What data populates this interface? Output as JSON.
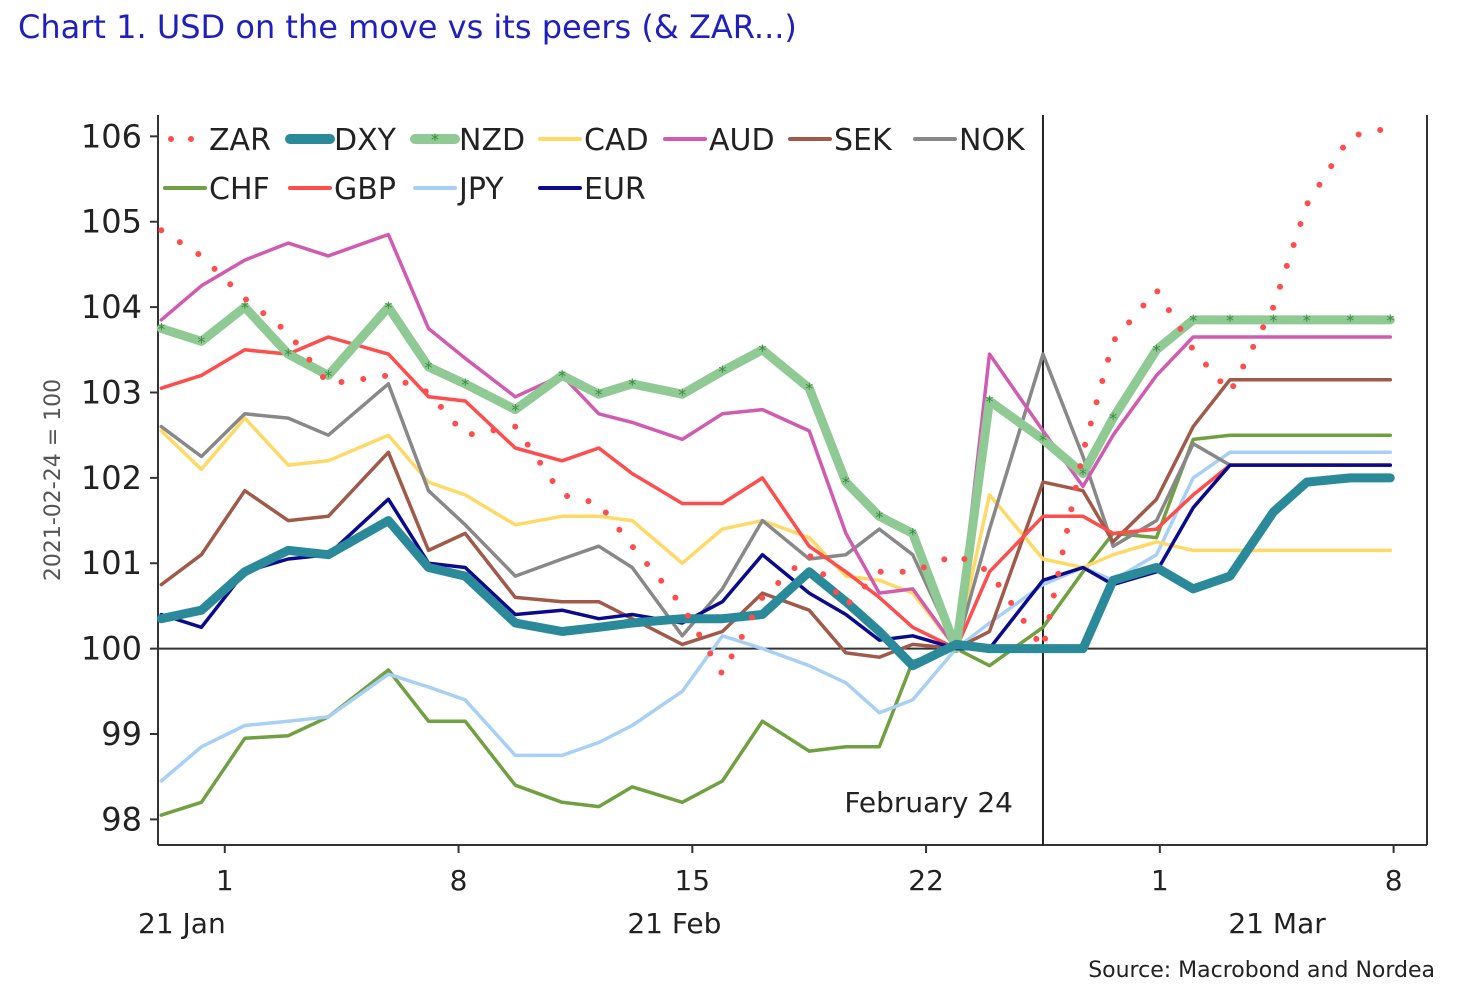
{
  "chart_data": {
    "type": "line",
    "title": "Chart 1. USD on the move vs its peers (& ZAR...)",
    "ylabel": "2021-02-24 = 100",
    "ylim": [
      97.7,
      106.25
    ],
    "yticks": [
      98,
      99,
      100,
      101,
      102,
      103,
      104,
      105,
      106
    ],
    "x_start_day": -2,
    "x_end_day": 36,
    "xticks": [
      {
        "day": 0,
        "label": "1"
      },
      {
        "day": 7,
        "label": "8"
      },
      {
        "day": 14,
        "label": "15"
      },
      {
        "day": 21,
        "label": "22"
      },
      {
        "day": 28,
        "label": "1"
      },
      {
        "day": 35,
        "label": "8"
      }
    ],
    "month_labels": [
      {
        "day": 0,
        "label": "21 Jan"
      },
      {
        "day": 14,
        "label": "21 Feb"
      },
      {
        "day": 32,
        "label": "21 Mar"
      }
    ],
    "reference_line": {
      "day": 24.5,
      "label": "February 24"
    },
    "baseline": 100,
    "x": [
      -1.9,
      -0.7,
      0.6,
      1.9,
      3.1,
      4.9,
      6.1,
      7.2,
      8.7,
      10.1,
      11.2,
      12.2,
      13.7,
      14.9,
      16.1,
      17.5,
      18.6,
      19.6,
      20.6,
      21.9,
      22.9,
      24.5,
      25.7,
      26.6,
      27.9,
      29.0,
      30.1,
      31.4,
      32.4,
      33.7,
      34.9
    ],
    "series": [
      {
        "name": "ZAR",
        "color": "#ff4c4c",
        "style": "dotted",
        "values": [
          104.9,
          104.6,
          104.1,
          103.7,
          103.1,
          103.2,
          103.0,
          102.5,
          102.6,
          101.8,
          101.7,
          101.2,
          100.5,
          99.7,
          100.6,
          101.1,
          100.5,
          100.9,
          100.9,
          101.1,
          100.9,
          100.0,
          102.3,
          103.6,
          104.2,
          103.5,
          103.0,
          104.0,
          105.2,
          106.0,
          106.1
        ]
      },
      {
        "name": "DXY",
        "color": "#2a8a9a",
        "style": "thick",
        "values": [
          100.35,
          100.45,
          100.9,
          101.15,
          101.1,
          101.5,
          100.95,
          100.85,
          100.3,
          100.2,
          100.25,
          100.3,
          100.35,
          100.35,
          100.4,
          100.9,
          100.55,
          100.2,
          99.8,
          100.05,
          100.0,
          100.0,
          100.0,
          100.8,
          100.95,
          100.7,
          100.85,
          101.6,
          101.95,
          102.0,
          102.0
        ]
      },
      {
        "name": "NZD",
        "color": "#8fca94",
        "style": "marker",
        "values": [
          103.75,
          103.6,
          104.0,
          103.45,
          103.2,
          104.0,
          103.3,
          103.1,
          102.8,
          103.2,
          102.98,
          103.1,
          102.98,
          103.25,
          103.5,
          103.05,
          101.95,
          101.55,
          101.35,
          100.0,
          102.9,
          102.45,
          102.05,
          102.7,
          103.5,
          103.85,
          103.85,
          103.85,
          103.85,
          103.85,
          103.85
        ]
      },
      {
        "name": "CAD",
        "color": "#ffd966",
        "style": "line",
        "values": [
          102.55,
          102.1,
          102.7,
          102.15,
          102.2,
          102.5,
          101.95,
          101.8,
          101.45,
          101.55,
          101.55,
          101.5,
          101.0,
          101.4,
          101.5,
          101.3,
          100.85,
          100.8,
          100.65,
          100.0,
          101.8,
          101.05,
          100.95,
          101.1,
          101.25,
          101.15,
          101.15,
          101.15,
          101.15,
          101.15,
          101.15
        ]
      },
      {
        "name": "AUD",
        "color": "#d05bb0",
        "style": "line",
        "values": [
          103.85,
          104.25,
          104.55,
          104.75,
          104.6,
          104.85,
          103.75,
          103.4,
          102.95,
          103.2,
          102.75,
          102.65,
          102.45,
          102.75,
          102.8,
          102.55,
          101.35,
          100.65,
          100.7,
          100.0,
          103.45,
          102.55,
          101.9,
          102.5,
          103.2,
          103.65,
          103.65,
          103.65,
          103.65,
          103.65,
          103.65
        ]
      },
      {
        "name": "SEK",
        "color": "#a05a4a",
        "style": "line",
        "values": [
          100.75,
          101.1,
          101.85,
          101.5,
          101.55,
          102.3,
          101.15,
          101.35,
          100.6,
          100.55,
          100.55,
          100.35,
          100.05,
          100.2,
          100.65,
          100.45,
          99.95,
          99.9,
          100.05,
          100.0,
          100.2,
          101.95,
          101.85,
          101.25,
          101.75,
          102.6,
          103.15,
          103.15,
          103.15,
          103.15,
          103.15
        ]
      },
      {
        "name": "NOK",
        "color": "#888888",
        "style": "line",
        "values": [
          102.6,
          102.25,
          102.75,
          102.7,
          102.5,
          103.1,
          101.85,
          101.45,
          100.85,
          101.05,
          101.2,
          100.95,
          100.15,
          100.7,
          101.5,
          101.05,
          101.1,
          101.4,
          101.1,
          100.0,
          101.4,
          103.45,
          102.25,
          101.2,
          101.5,
          102.4,
          102.15,
          102.15,
          102.15,
          102.15,
          102.15
        ]
      },
      {
        "name": "CHF",
        "color": "#70a040",
        "style": "line",
        "values": [
          98.05,
          98.2,
          98.95,
          98.98,
          99.2,
          99.75,
          99.15,
          99.15,
          98.4,
          98.2,
          98.15,
          98.38,
          98.2,
          98.45,
          99.15,
          98.8,
          98.85,
          98.85,
          99.85,
          100.0,
          99.8,
          100.25,
          100.9,
          101.35,
          101.3,
          102.45,
          102.5,
          102.5,
          102.5,
          102.5,
          102.5
        ]
      },
      {
        "name": "GBP",
        "color": "#ff4c4c",
        "style": "line",
        "values": [
          103.05,
          103.2,
          103.5,
          103.45,
          103.65,
          103.45,
          102.95,
          102.9,
          102.35,
          102.2,
          102.35,
          102.05,
          101.7,
          101.7,
          102.0,
          101.2,
          100.9,
          100.6,
          100.25,
          100.0,
          100.9,
          101.55,
          101.55,
          101.35,
          101.4,
          101.8,
          102.15,
          102.15,
          102.15,
          102.15,
          102.15
        ]
      },
      {
        "name": "JPY",
        "color": "#a8d0f5",
        "style": "line",
        "values": [
          98.45,
          98.85,
          99.1,
          99.15,
          99.2,
          99.7,
          99.55,
          99.4,
          98.75,
          98.75,
          98.9,
          99.1,
          99.5,
          100.15,
          100.0,
          99.8,
          99.6,
          99.25,
          99.4,
          100.0,
          100.3,
          100.75,
          100.95,
          100.8,
          101.1,
          102.0,
          102.3,
          102.3,
          102.3,
          102.3,
          102.3
        ]
      },
      {
        "name": "EUR",
        "color": "#0a0a8c",
        "style": "line",
        "values": [
          100.4,
          100.25,
          100.9,
          101.05,
          101.1,
          101.75,
          101.0,
          100.95,
          100.4,
          100.45,
          100.35,
          100.4,
          100.3,
          100.55,
          101.1,
          100.65,
          100.4,
          100.1,
          100.15,
          100.0,
          100.0,
          100.8,
          100.95,
          100.75,
          100.9,
          101.65,
          102.15,
          102.15,
          102.15,
          102.15,
          102.15
        ]
      }
    ],
    "source": "Source: Macrobond and Nordea"
  }
}
